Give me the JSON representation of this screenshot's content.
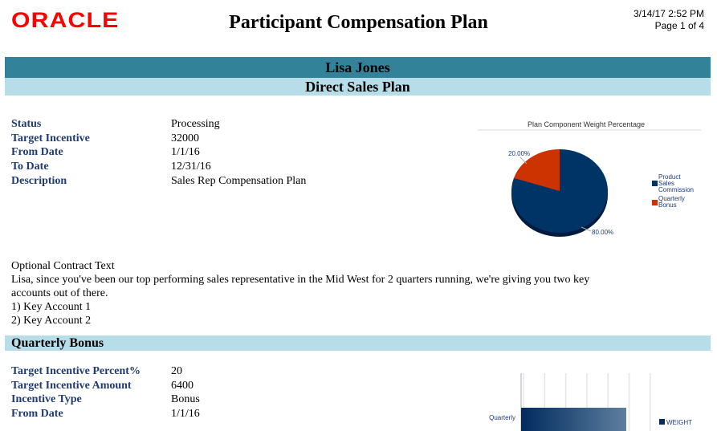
{
  "header": {
    "logo": "ORACLE",
    "title": "Participant Compensation Plan",
    "datetime": "3/14/17 2:52 PM",
    "page": "Page 1 of 4"
  },
  "participant": "Lisa Jones",
  "plan": "Direct Sales Plan",
  "plan_fields": [
    {
      "label": "Status",
      "value": "Processing"
    },
    {
      "label": "Target Incentive",
      "value": "32000"
    },
    {
      "label": "From Date",
      "value": "1/1/16"
    },
    {
      "label": "To Date",
      "value": "12/31/16"
    },
    {
      "label": "Description",
      "value": "Sales Rep Compensation Plan"
    }
  ],
  "contract": {
    "heading": "Optional Contract Text",
    "body": "Lisa, since you've been our top performing sales representative in the Mid West for 2 quarters running, we're giving you two key accounts out of there.",
    "items": [
      "1) Key Account 1",
      "2) Key Account 2"
    ]
  },
  "section": {
    "title": "Quarterly Bonus",
    "fields": [
      {
        "label": "Target Incentive Percent%",
        "value": "20"
      },
      {
        "label": "Target Incentive Amount",
        "value": "6400"
      },
      {
        "label": "Incentive Type",
        "value": "Bonus"
      },
      {
        "label": "From Date",
        "value": "1/1/16"
      }
    ]
  },
  "chart_data": [
    {
      "type": "pie",
      "title": "Plan Component Weight Percentage",
      "categories": [
        "Product Sales Commission",
        "Quarterly Bonus"
      ],
      "values": [
        80,
        20
      ],
      "labels": [
        "80.00%",
        "20.00%"
      ],
      "colors": [
        "#003366",
        "#cc3300"
      ],
      "legend": "right"
    },
    {
      "type": "bar",
      "orientation": "horizontal",
      "categories": [
        "Quarterly"
      ],
      "series": [
        {
          "name": "WEIGHT",
          "values": [
            20
          ]
        }
      ],
      "legend": "right"
    }
  ]
}
